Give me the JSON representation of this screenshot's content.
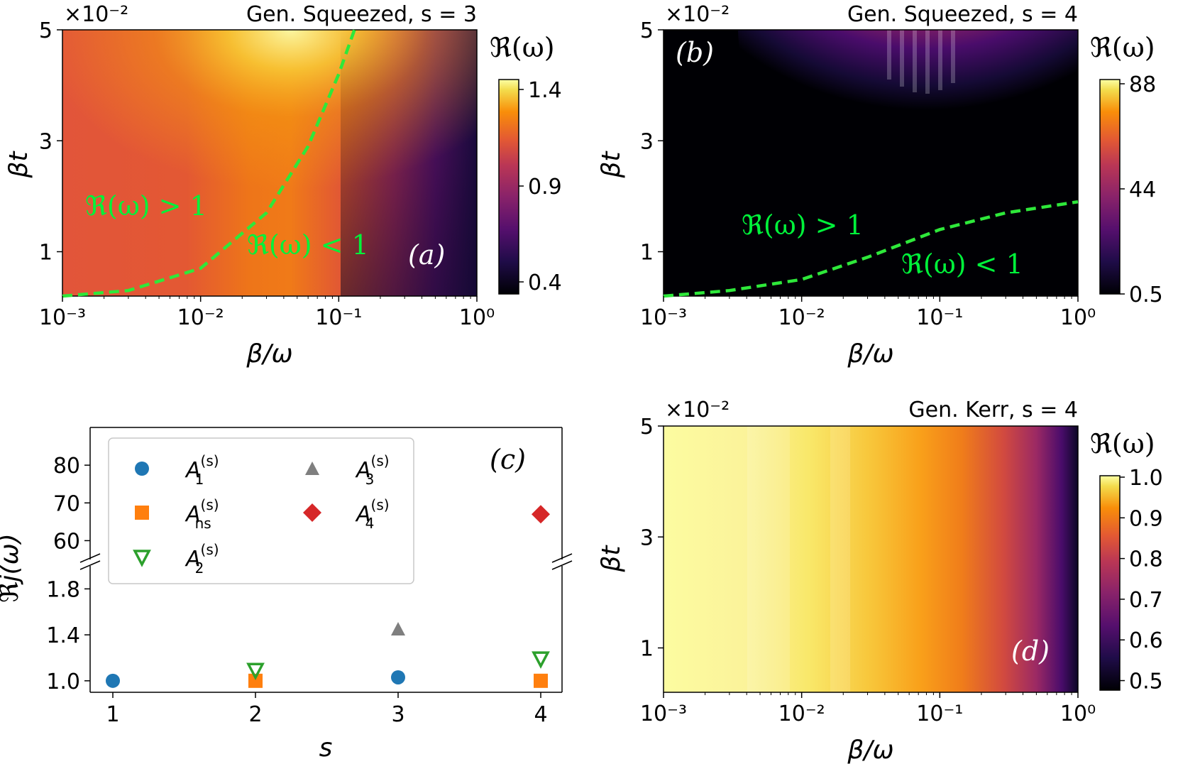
{
  "panels": {
    "a": {
      "title": "Gen. Squeezed,   s = 3",
      "exponent": "×10⁻²",
      "ylabel": "βt",
      "xlabel": "β/ω",
      "yticks": [
        "1",
        "3",
        "5"
      ],
      "xticks": [
        "10⁻³",
        "10⁻²",
        "10⁻¹",
        "10⁰"
      ],
      "colorbar_label": "ℜ(ω)",
      "colorbar_ticks": [
        "1.4",
        "0.9",
        "0.4"
      ],
      "region_upper": "ℜ(ω) > 1",
      "region_lower": "ℜ(ω) < 1",
      "tag": "(a)"
    },
    "b": {
      "title": "Gen. Squeezed,   s = 4",
      "exponent": "×10⁻²",
      "ylabel": "βt",
      "xlabel": "β/ω",
      "yticks": [
        "1",
        "3",
        "5"
      ],
      "xticks": [
        "10⁻³",
        "10⁻²",
        "10⁻¹",
        "10⁰"
      ],
      "colorbar_label": "ℜ(ω)",
      "colorbar_ticks": [
        "88",
        "44",
        "0.5"
      ],
      "region_upper": "ℜ(ω) > 1",
      "region_lower": "ℜ(ω) < 1",
      "tag": "(b)"
    },
    "c": {
      "ylabel": "ℜj(ω)",
      "xlabel": "s",
      "xticks": [
        "1",
        "2",
        "3",
        "4"
      ],
      "yticks_upper": [
        "80",
        "70",
        "60"
      ],
      "yticks_lower": [
        "1.8",
        "1.4",
        "1.0"
      ],
      "tag": "(c)",
      "legend": [
        {
          "name": "A",
          "sup": "(s)",
          "sub": "1",
          "marker": "circle",
          "color": "#1f77b4"
        },
        {
          "name": "A",
          "sup": "(s)",
          "sub": "ns",
          "marker": "square",
          "color": "#ff7f0e"
        },
        {
          "name": "A",
          "sup": "(s)",
          "sub": "2",
          "marker": "triangle-down-open",
          "color": "#2ca02c"
        },
        {
          "name": "A",
          "sup": "(s)",
          "sub": "3",
          "marker": "triangle-up",
          "color": "#7f7f7f"
        },
        {
          "name": "A",
          "sup": "(s)",
          "sub": "4",
          "marker": "diamond",
          "color": "#d62728"
        }
      ]
    },
    "d": {
      "title": "Gen. Kerr,   s = 4",
      "exponent": "×10⁻²",
      "ylabel": "βt",
      "xlabel": "β/ω",
      "yticks": [
        "1",
        "3",
        "5"
      ],
      "xticks": [
        "10⁻³",
        "10⁻²",
        "10⁻¹",
        "10⁰"
      ],
      "colorbar_label": "ℜ(ω)",
      "colorbar_ticks": [
        "1.0",
        "0.9",
        "0.8",
        "0.7",
        "0.6",
        "0.5"
      ],
      "tag": "(d)"
    }
  },
  "chart_data": [
    {
      "type": "heatmap",
      "panel": "a",
      "title": "Gen. Squeezed, s = 3",
      "xlabel": "β/ω",
      "ylabel": "βt",
      "x_scale": "log",
      "xlim": [
        0.001,
        1
      ],
      "ylim": [
        0.002,
        0.05
      ],
      "y_multiplier": "×10⁻²",
      "colormap": "inferno",
      "clim": [
        0.3,
        1.45
      ],
      "contour_level_1": {
        "beta_over_omega": [
          0.001,
          0.003,
          0.01,
          0.03,
          0.06,
          0.1,
          0.13
        ],
        "beta_t": [
          0.002,
          0.003,
          0.007,
          0.017,
          0.029,
          0.042,
          0.05
        ]
      }
    },
    {
      "type": "heatmap",
      "panel": "b",
      "title": "Gen. Squeezed, s = 4",
      "xlabel": "β/ω",
      "ylabel": "βt",
      "x_scale": "log",
      "xlim": [
        0.001,
        1
      ],
      "ylim": [
        0.002,
        0.05
      ],
      "y_multiplier": "×10⁻²",
      "colormap": "inferno",
      "clim": [
        0.5,
        88
      ],
      "contour_level_1": {
        "beta_over_omega": [
          0.001,
          0.003,
          0.01,
          0.03,
          0.1,
          0.3,
          1
        ],
        "beta_t": [
          0.002,
          0.003,
          0.005,
          0.009,
          0.014,
          0.017,
          0.019
        ]
      }
    },
    {
      "type": "scatter",
      "panel": "c",
      "xlabel": "s",
      "ylabel": "ℜj(ω)",
      "y_axis": "broken",
      "ylim_lower": [
        0.9,
        2.0
      ],
      "ylim_upper": [
        55,
        90
      ],
      "series": [
        {
          "name": "A1(s)",
          "x": [
            1,
            3
          ],
          "values": [
            1.0,
            1.03
          ]
        },
        {
          "name": "Ans(s)",
          "x": [
            2,
            4
          ],
          "values": [
            1.0,
            1.0
          ]
        },
        {
          "name": "A2(s)",
          "x": [
            2,
            4
          ],
          "values": [
            1.09,
            1.19
          ]
        },
        {
          "name": "A3(s)",
          "x": [
            3
          ],
          "values": [
            1.45
          ]
        },
        {
          "name": "A4(s)",
          "x": [
            4
          ],
          "values": [
            67
          ]
        }
      ]
    },
    {
      "type": "heatmap",
      "panel": "d",
      "title": "Gen. Kerr, s = 4",
      "xlabel": "β/ω",
      "ylabel": "βt",
      "x_scale": "log",
      "xlim": [
        0.001,
        1
      ],
      "ylim": [
        0.002,
        0.05
      ],
      "y_multiplier": "×10⁻²",
      "colormap": "inferno",
      "clim": [
        0.48,
        1.0
      ]
    }
  ]
}
